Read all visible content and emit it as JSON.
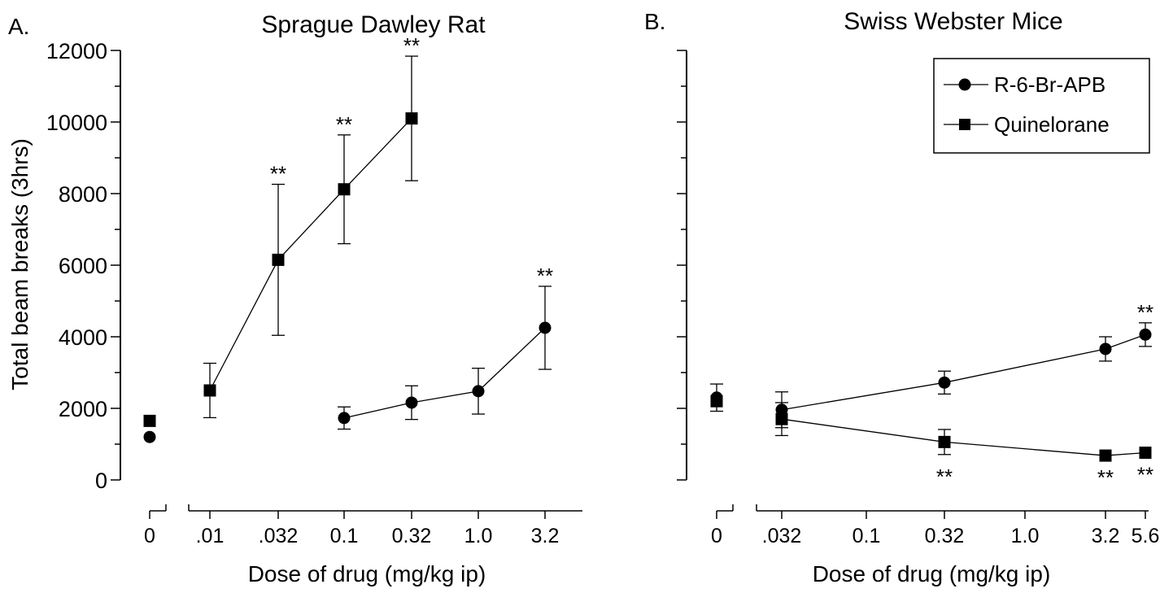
{
  "chart_data": [
    {
      "type": "line",
      "panel_label": "A.",
      "title": "Sprague Dawley Rat",
      "xlabel": "Dose of drug (mg/kg ip)",
      "ylabel": "Total beam breaks (3hrs)",
      "ylim": [
        0,
        12000
      ],
      "yticks": [
        "0",
        "2000",
        "4000",
        "6000",
        "8000",
        "10000",
        "12000"
      ],
      "xticklabels": [
        "0",
        ".01",
        ".032",
        "0.1",
        "0.32",
        "1.0",
        "3.2"
      ],
      "x_scale": "log (doses), with separate control point at 0",
      "legend": "none",
      "series": [
        {
          "name": "R-6-Br-APB",
          "marker": "circle",
          "control": {
            "x": "0",
            "y": 1200
          },
          "points": [
            {
              "x": "0.1",
              "y": 1730,
              "err": 310,
              "sig": ""
            },
            {
              "x": "0.32",
              "y": 2160,
              "err": 470,
              "sig": ""
            },
            {
              "x": "1.0",
              "y": 2480,
              "err": 640,
              "sig": ""
            },
            {
              "x": "3.2",
              "y": 4250,
              "err": 1160,
              "sig": "**"
            }
          ]
        },
        {
          "name": "Quinelorane",
          "marker": "square",
          "control": {
            "x": "0",
            "y": 1650
          },
          "points": [
            {
              "x": ".01",
              "y": 2500,
              "err": 760,
              "sig": ""
            },
            {
              "x": ".032",
              "y": 6150,
              "err": 2110,
              "sig": "**"
            },
            {
              "x": "0.1",
              "y": 8120,
              "err": 1520,
              "sig": "**"
            },
            {
              "x": "0.32",
              "y": 10100,
              "err": 1740,
              "sig": "**"
            }
          ]
        }
      ]
    },
    {
      "type": "line",
      "panel_label": "B.",
      "title": "Swiss Webster Mice",
      "xlabel": "Dose of drug (mg/kg ip)",
      "ylabel": "",
      "ylim": [
        0,
        12000
      ],
      "yticks": [
        "0",
        "2000",
        "4000",
        "6000",
        "8000",
        "10000",
        "12000"
      ],
      "xticklabels": [
        "0",
        ".032",
        "0.1",
        "0.32",
        "1.0",
        "3.2",
        "5.6"
      ],
      "x_scale": "log (doses), with separate control point at 0",
      "legend": "top-right",
      "series": [
        {
          "name": "R-6-Br-APB",
          "marker": "circle",
          "control": {
            "x": "0",
            "y": 2300,
            "err": 380
          },
          "points": [
            {
              "x": ".032",
              "y": 1960,
              "err": 500,
              "sig": ""
            },
            {
              "x": "0.32",
              "y": 2720,
              "err": 320,
              "sig": ""
            },
            {
              "x": "3.2",
              "y": 3660,
              "err": 340,
              "sig": ""
            },
            {
              "x": "5.6",
              "y": 4060,
              "err": 330,
              "sig": "**"
            }
          ]
        },
        {
          "name": "Quinelorane",
          "marker": "square",
          "control": {
            "x": "0",
            "y": 2200
          },
          "points": [
            {
              "x": ".032",
              "y": 1700,
              "err": 460,
              "sig": ""
            },
            {
              "x": "0.32",
              "y": 1060,
              "err": 350,
              "sig": "**"
            },
            {
              "x": "3.2",
              "y": 680,
              "err": 0,
              "sig": "**"
            },
            {
              "x": "5.6",
              "y": 760,
              "err": 0,
              "sig": "**"
            }
          ]
        }
      ]
    }
  ]
}
